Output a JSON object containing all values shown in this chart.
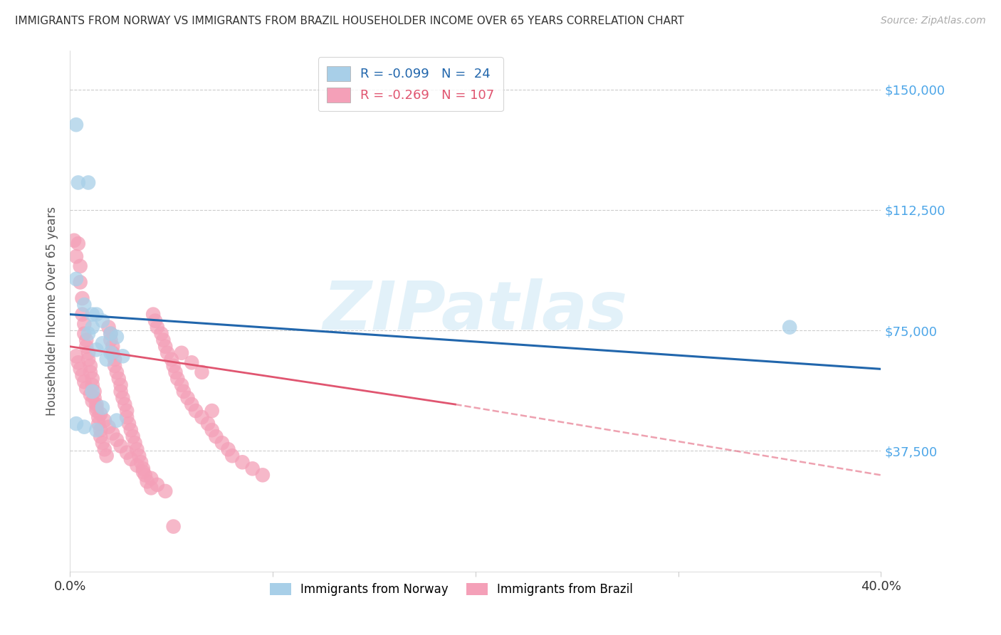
{
  "title": "IMMIGRANTS FROM NORWAY VS IMMIGRANTS FROM BRAZIL HOUSEHOLDER INCOME OVER 65 YEARS CORRELATION CHART",
  "source": "Source: ZipAtlas.com",
  "ylabel": "Householder Income Over 65 years",
  "xlim": [
    0.0,
    0.4
  ],
  "ylim": [
    0,
    162000
  ],
  "yticks": [
    37500,
    75000,
    112500,
    150000
  ],
  "ytick_labels": [
    "$37,500",
    "$75,000",
    "$112,500",
    "$150,000"
  ],
  "norway_R": -0.099,
  "norway_N": 24,
  "brazil_R": -0.269,
  "brazil_N": 107,
  "norway_color": "#a8cfe8",
  "brazil_color": "#f4a0b8",
  "norway_line_color": "#2166ac",
  "brazil_line_color": "#e05570",
  "watermark": "ZIPatlas",
  "norway_line": [
    0.0,
    0.4,
    80000,
    63000
  ],
  "brazil_line_solid": [
    0.0,
    0.19,
    70000,
    52000
  ],
  "brazil_line_dash": [
    0.19,
    0.4,
    52000,
    30000
  ],
  "norway_points_x": [
    0.003,
    0.004,
    0.009,
    0.003,
    0.007,
    0.011,
    0.013,
    0.016,
    0.011,
    0.009,
    0.02,
    0.023,
    0.016,
    0.013,
    0.02,
    0.026,
    0.018,
    0.011,
    0.016,
    0.023,
    0.003,
    0.007,
    0.355,
    0.013
  ],
  "norway_points_y": [
    139000,
    121000,
    121000,
    91000,
    83000,
    80000,
    80000,
    78000,
    76000,
    74000,
    74000,
    73000,
    71000,
    69000,
    68000,
    67000,
    66000,
    56000,
    51000,
    47000,
    46000,
    45000,
    76000,
    44000
  ],
  "brazil_points_x": [
    0.002,
    0.003,
    0.004,
    0.005,
    0.005,
    0.006,
    0.006,
    0.007,
    0.007,
    0.008,
    0.008,
    0.009,
    0.009,
    0.01,
    0.01,
    0.011,
    0.011,
    0.012,
    0.012,
    0.013,
    0.013,
    0.014,
    0.014,
    0.015,
    0.015,
    0.016,
    0.017,
    0.018,
    0.019,
    0.02,
    0.02,
    0.021,
    0.021,
    0.022,
    0.022,
    0.023,
    0.024,
    0.025,
    0.025,
    0.026,
    0.027,
    0.028,
    0.028,
    0.029,
    0.03,
    0.031,
    0.032,
    0.033,
    0.034,
    0.035,
    0.036,
    0.037,
    0.038,
    0.04,
    0.041,
    0.042,
    0.043,
    0.045,
    0.046,
    0.047,
    0.048,
    0.05,
    0.051,
    0.052,
    0.053,
    0.055,
    0.056,
    0.058,
    0.06,
    0.062,
    0.065,
    0.068,
    0.07,
    0.072,
    0.075,
    0.078,
    0.08,
    0.085,
    0.09,
    0.095,
    0.003,
    0.004,
    0.005,
    0.006,
    0.007,
    0.008,
    0.01,
    0.011,
    0.013,
    0.015,
    0.017,
    0.019,
    0.021,
    0.023,
    0.025,
    0.028,
    0.03,
    0.033,
    0.036,
    0.04,
    0.043,
    0.047,
    0.051,
    0.055,
    0.06,
    0.065,
    0.07
  ],
  "brazil_points_y": [
    103000,
    98000,
    102000,
    95000,
    90000,
    85000,
    80000,
    77000,
    74000,
    72000,
    70000,
    68000,
    66000,
    64000,
    62000,
    60000,
    58000,
    56000,
    54000,
    52000,
    50000,
    48000,
    46000,
    44000,
    42000,
    40000,
    38000,
    36000,
    76000,
    74000,
    72000,
    70000,
    68000,
    66000,
    64000,
    62000,
    60000,
    58000,
    56000,
    54000,
    52000,
    50000,
    48000,
    46000,
    44000,
    42000,
    40000,
    38000,
    36000,
    34000,
    32000,
    30000,
    28000,
    26000,
    80000,
    78000,
    76000,
    74000,
    72000,
    70000,
    68000,
    66000,
    64000,
    62000,
    60000,
    58000,
    56000,
    54000,
    52000,
    50000,
    48000,
    46000,
    44000,
    42000,
    40000,
    38000,
    36000,
    34000,
    32000,
    30000,
    67000,
    65000,
    63000,
    61000,
    59000,
    57000,
    55000,
    53000,
    51000,
    49000,
    47000,
    45000,
    43000,
    41000,
    39000,
    37000,
    35000,
    33000,
    31000,
    29000,
    27000,
    25000,
    14000,
    68000,
    65000,
    62000,
    50000
  ]
}
